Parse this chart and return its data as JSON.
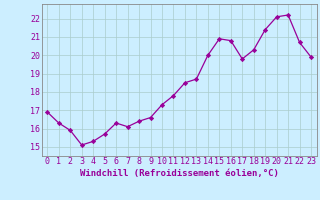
{
  "x": [
    0,
    1,
    2,
    3,
    4,
    5,
    6,
    7,
    8,
    9,
    10,
    11,
    12,
    13,
    14,
    15,
    16,
    17,
    18,
    19,
    20,
    21,
    22,
    23
  ],
  "y": [
    16.9,
    16.3,
    15.9,
    15.1,
    15.3,
    15.7,
    16.3,
    16.1,
    16.4,
    16.6,
    17.3,
    17.8,
    18.5,
    18.7,
    20.0,
    20.9,
    20.8,
    19.8,
    20.3,
    21.4,
    22.1,
    22.2,
    20.7,
    19.9
  ],
  "line_color": "#990099",
  "marker": "D",
  "marker_size": 2.2,
  "bg_color": "#cceeff",
  "grid_color": "#aacccc",
  "xlabel": "Windchill (Refroidissement éolien,°C)",
  "xlabel_color": "#990099",
  "xlabel_fontsize": 6.5,
  "tick_color": "#990099",
  "tick_fontsize": 6,
  "ytick_labels": [
    "15",
    "16",
    "17",
    "18",
    "19",
    "20",
    "21",
    "22"
  ],
  "ytick_values": [
    15,
    16,
    17,
    18,
    19,
    20,
    21,
    22
  ],
  "ylim": [
    14.5,
    22.8
  ],
  "xlim": [
    -0.5,
    23.5
  ]
}
